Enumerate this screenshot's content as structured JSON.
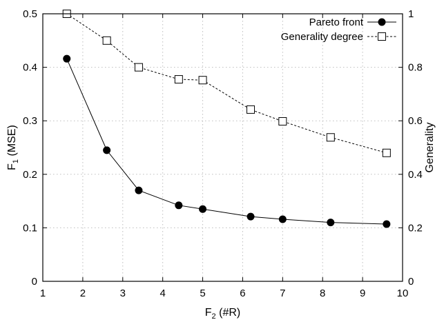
{
  "chart_data": {
    "type": "line",
    "xlabel": "F",
    "xlabel_sub": "2",
    "xlabel_unit": "(#R)",
    "ylabel": "F",
    "ylabel_sub": "1",
    "ylabel_unit": "(MSE)",
    "y2label": "Generality",
    "xlim": [
      1,
      10
    ],
    "ylim": [
      0,
      0.5
    ],
    "y2lim": [
      0,
      1
    ],
    "xticks": [
      "1",
      "2",
      "3",
      "4",
      "5",
      "6",
      "7",
      "8",
      "9",
      "10"
    ],
    "yticks": [
      "0",
      "0.1",
      "0.2",
      "0.3",
      "0.4",
      "0.5"
    ],
    "y2ticks": [
      "0",
      "0.2",
      "0.4",
      "0.6",
      "0.8",
      "1"
    ],
    "grid": true,
    "legend_position": "top-right",
    "series": [
      {
        "name": "Pareto front",
        "axis": "left",
        "marker": "filled-circle",
        "line": "solid",
        "color": "#000000",
        "x": [
          1.6,
          2.6,
          3.4,
          4.4,
          5.0,
          6.2,
          7.0,
          8.2,
          9.6
        ],
        "y": [
          0.416,
          0.245,
          0.17,
          0.142,
          0.135,
          0.121,
          0.116,
          0.11,
          0.107
        ]
      },
      {
        "name": "Generality degree",
        "axis": "right",
        "marker": "open-square",
        "line": "dashed",
        "color": "#000000",
        "x": [
          1.6,
          2.6,
          3.4,
          4.4,
          5.0,
          6.2,
          7.0,
          8.2,
          9.6
        ],
        "y": [
          1.0,
          0.9,
          0.8,
          0.755,
          0.752,
          0.642,
          0.598,
          0.538,
          0.48
        ]
      }
    ]
  }
}
